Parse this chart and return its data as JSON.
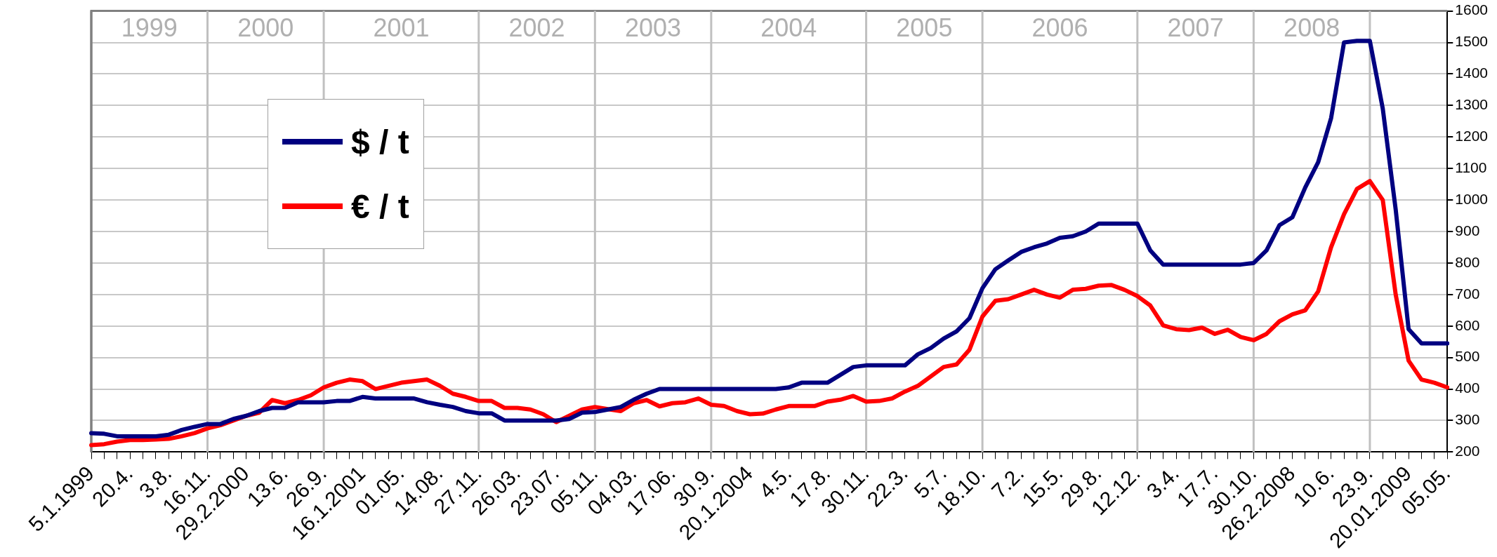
{
  "chart_data": {
    "type": "line",
    "categories": [
      "5.1.1999",
      null,
      null,
      "20.4.",
      null,
      null,
      "3.8.",
      null,
      null,
      "16.11.",
      null,
      null,
      "29.2.2000",
      null,
      null,
      "13.6.",
      null,
      null,
      "26.9.",
      null,
      null,
      "16.1.2001",
      null,
      null,
      "01.05.",
      null,
      null,
      "14.08.",
      null,
      null,
      "27.11.",
      null,
      null,
      "26.03.",
      null,
      null,
      "23.07.",
      null,
      null,
      "05.11.",
      null,
      null,
      "04.03.",
      null,
      null,
      "17.06.",
      null,
      null,
      "30.9.",
      null,
      null,
      "20.1.2004",
      null,
      null,
      "4.5.",
      null,
      null,
      "17.8.",
      null,
      null,
      "30.11.",
      null,
      null,
      "22.3.",
      null,
      null,
      "5.7.",
      null,
      null,
      "18.10.",
      null,
      null,
      "7.2.",
      null,
      null,
      "15.5.",
      null,
      null,
      "29.8.",
      null,
      null,
      "12.12.",
      null,
      null,
      "3.4.",
      null,
      null,
      "17.7.",
      null,
      null,
      "30.10.",
      null,
      null,
      "26.2.2008",
      null,
      null,
      "10.6.",
      null,
      null,
      "23.9.",
      null,
      null,
      "20.01.2009",
      null,
      null,
      "05.05."
    ],
    "series": [
      {
        "name": "$ / t",
        "color": "#000080",
        "values": [
          260,
          258,
          250,
          250,
          250,
          250,
          255,
          270,
          280,
          289,
          289,
          305,
          315,
          330,
          340,
          340,
          358,
          358,
          358,
          362,
          362,
          375,
          370,
          370,
          370,
          370,
          358,
          350,
          343,
          330,
          323,
          323,
          300,
          300,
          300,
          300,
          300,
          305,
          325,
          327,
          335,
          343,
          366,
          385,
          400,
          400,
          400,
          400,
          400,
          400,
          400,
          400,
          400,
          400,
          405,
          420,
          420,
          420,
          445,
          470,
          475,
          475,
          475,
          475,
          510,
          530,
          560,
          583,
          625,
          720,
          780,
          808,
          835,
          850,
          862,
          880,
          885,
          900,
          925,
          925,
          925,
          925,
          840,
          795,
          795,
          795,
          795,
          795,
          795,
          795,
          800,
          840,
          920,
          945,
          1040,
          1120,
          1260,
          1500,
          1505,
          1505,
          1290,
          970,
          590,
          545,
          545,
          545
        ]
      },
      {
        "name": "€ / t",
        "color": "#ff0000",
        "values": [
          222,
          225,
          233,
          238,
          238,
          240,
          242,
          250,
          260,
          275,
          285,
          300,
          315,
          325,
          365,
          355,
          365,
          380,
          405,
          420,
          430,
          425,
          400,
          410,
          420,
          425,
          430,
          410,
          385,
          375,
          362,
          362,
          340,
          340,
          335,
          320,
          295,
          315,
          335,
          343,
          336,
          330,
          355,
          365,
          345,
          355,
          358,
          370,
          350,
          346,
          330,
          320,
          322,
          335,
          346,
          346,
          346,
          360,
          366,
          378,
          360,
          362,
          370,
          392,
          410,
          440,
          470,
          478,
          525,
          630,
          680,
          685,
          700,
          715,
          700,
          690,
          715,
          718,
          728,
          730,
          715,
          695,
          665,
          602,
          590,
          587,
          595,
          575,
          588,
          565,
          555,
          575,
          615,
          637,
          650,
          710,
          850,
          955,
          1035,
          1060,
          1000,
          700,
          490,
          430,
          420,
          405
        ]
      }
    ],
    "ylim": [
      200,
      1600
    ],
    "yticks": [
      200,
      300,
      400,
      500,
      600,
      700,
      800,
      900,
      1000,
      1100,
      1200,
      1300,
      1400,
      1500,
      1600
    ],
    "grid": "y",
    "legend": "top left",
    "marker": "none",
    "line_style": "solid",
    "ref_lines": [
      {
        "axis": "x",
        "value": "5.1.1999",
        "label": "1999",
        "color": "#808080"
      },
      {
        "axis": "x",
        "value": "16.11.",
        "label": "2000",
        "color": "#c0c0c0"
      },
      {
        "axis": "x",
        "value": "26.9.",
        "label": "2001",
        "color": "#c0c0c0"
      },
      {
        "axis": "x",
        "value": "27.11.",
        "label": "2002",
        "color": "#c0c0c0"
      },
      {
        "axis": "x",
        "value": "05.11.",
        "label": "2003",
        "color": "#c0c0c0"
      },
      {
        "axis": "x",
        "value": "30.9.",
        "label": "2004",
        "color": "#c0c0c0"
      },
      {
        "axis": "x",
        "value": "30.11.",
        "label": "2005",
        "color": "#c0c0c0"
      },
      {
        "axis": "x",
        "value": "18.10.",
        "label": "2006",
        "color": "#c0c0c0"
      },
      {
        "axis": "x",
        "value": "12.12.",
        "label": "2007",
        "color": "#c0c0c0"
      },
      {
        "axis": "x",
        "value": "30.10.",
        "label": "2008",
        "color": "#c0c0c0"
      },
      {
        "axis": "x",
        "value": "23.9.",
        "color": "#c0c0c0"
      }
    ]
  }
}
